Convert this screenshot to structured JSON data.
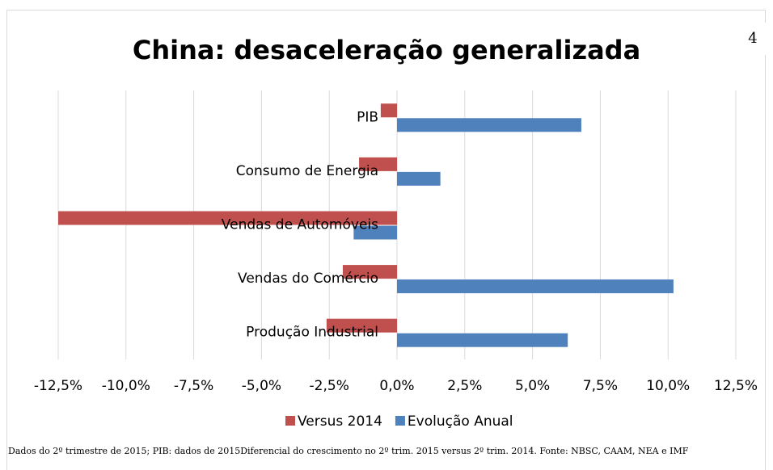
{
  "page_number": "4",
  "chart_data": {
    "type": "barh",
    "title": "China: desaceleração generalizada",
    "categories": [
      "PIB",
      "Consumo de Energia",
      "Vendas de Automóveis",
      "Vendas do Comércio",
      "Produção Industrial"
    ],
    "series": [
      {
        "name": "Versus 2014",
        "color": "#c0504d",
        "values": [
          -0.6,
          -1.4,
          -12.5,
          -2.0,
          -2.6
        ]
      },
      {
        "name": "Evolução Anual",
        "color": "#4f81bd",
        "values": [
          6.8,
          1.6,
          -1.6,
          10.2,
          6.3
        ]
      }
    ],
    "xlim": [
      -12.5,
      12.5
    ],
    "xticks": [
      {
        "value": -12.5,
        "label": "-12,5%"
      },
      {
        "value": -10,
        "label": "-10,0%"
      },
      {
        "value": -7.5,
        "label": "-7,5%"
      },
      {
        "value": -5,
        "label": "-5,0%"
      },
      {
        "value": -2.5,
        "label": "-2,5%"
      },
      {
        "value": 0,
        "label": "0,0%"
      },
      {
        "value": 2.5,
        "label": "2,5%"
      },
      {
        "value": 5,
        "label": "5,0%"
      },
      {
        "value": 7.5,
        "label": "7,5%"
      },
      {
        "value": 10,
        "label": "10,0%"
      },
      {
        "value": 12.5,
        "label": "12,5%"
      }
    ],
    "grid": true,
    "legend": "bottom",
    "footnote": "Dados do 2º trimestre de 2015; PIB: dados de 2015Diferencial do crescimento no 2º trim. 2015 versus 2º trim. 2014. Fonte: NBSC, CAAM, NEA e IMF"
  }
}
